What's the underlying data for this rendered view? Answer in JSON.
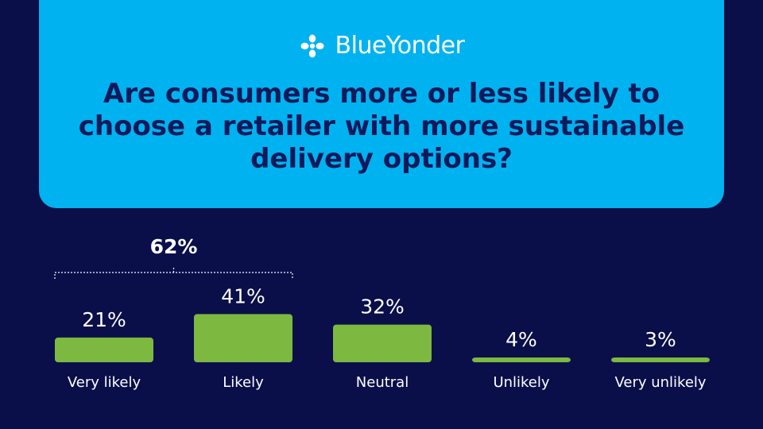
{
  "brand": {
    "name": "BlueYonder",
    "logo_icon": "blue-yonder-flower-icon"
  },
  "colors": {
    "background": "#0a0f4a",
    "header": "#00b2f0",
    "bar": "#7db840",
    "question_text": "#10195a"
  },
  "question": "Are consumers more or less likely to choose a retailer with more sustainable delivery options?",
  "chart_data": {
    "type": "bar",
    "title": "Are consumers more or less likely to choose a retailer with more sustainable delivery options?",
    "categories": [
      "Very likely",
      "Likely",
      "Neutral",
      "Unlikely",
      "Very unlikely"
    ],
    "values": [
      21,
      41,
      32,
      4,
      3
    ],
    "value_labels": [
      "21%",
      "41%",
      "32%",
      "4%",
      "3%"
    ],
    "unit": "%",
    "grid": false,
    "legend": "none",
    "group": {
      "label": "62%",
      "categories": [
        "Very likely",
        "Likely"
      ]
    }
  }
}
